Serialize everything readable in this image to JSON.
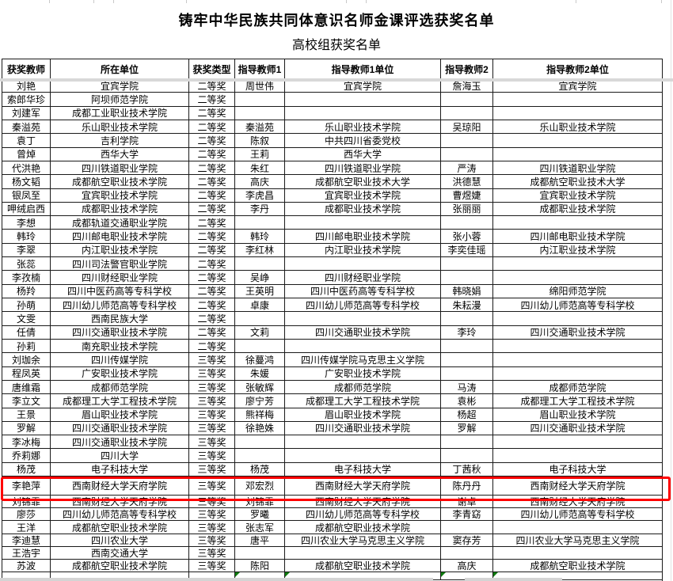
{
  "title": "铸牢中华民族共同体意识名师金课评选获奖名单",
  "subtitle": "高校组获奖名单",
  "columns": [
    "获奖教师",
    "所在单位",
    "获奖类型",
    "指导教师1",
    "指导教师1单位",
    "指导教师2",
    "指导教师2单位"
  ],
  "colors": {
    "highlight_border": "#ff0000",
    "comment_marker_green": "#0e7a0e",
    "grid_border": "#1a1a1a",
    "pane_divider_grey": "#d8d8d8"
  },
  "rows": [
    {
      "cells": [
        "刘艳",
        "宜宾学院",
        "二等奖",
        "周世伟",
        "宜宾学院",
        "詹海玉",
        "宜宾学院"
      ],
      "markers": [],
      "highlighted": false
    },
    {
      "cells": [
        "索郎华珍",
        "阿坝师范学院",
        "二等奖",
        "",
        "",
        "",
        ""
      ],
      "markers": [
        3,
        4,
        5,
        6
      ],
      "highlighted": false
    },
    {
      "cells": [
        "刘建军",
        "成都工业职业技术学院",
        "二等奖",
        "",
        "",
        "",
        ""
      ],
      "markers": [
        3,
        4,
        5,
        6
      ],
      "highlighted": false
    },
    {
      "cells": [
        "秦溢苑",
        "乐山职业技术学院",
        "二等奖",
        "秦溢苑",
        "乐山职业技术学院",
        "吴琼阳",
        "乐山职业技术学院"
      ],
      "markers": [],
      "highlighted": false
    },
    {
      "cells": [
        "袁丁",
        "吉利学院",
        "二等奖",
        "陈叙",
        "中共四川省委党校",
        "",
        ""
      ],
      "markers": [
        5,
        6
      ],
      "highlighted": false
    },
    {
      "cells": [
        "曾焯",
        "西华大学",
        "二等奖",
        "王莉",
        "西华大学",
        "",
        ""
      ],
      "markers": [
        5,
        6
      ],
      "highlighted": false
    },
    {
      "cells": [
        "代洪艳",
        "四川铁道职业学院",
        "二等奖",
        "朱红",
        "四川铁道职业学院",
        "严涛",
        "四川铁道职业学院"
      ],
      "markers": [],
      "highlighted": false
    },
    {
      "cells": [
        "杨文韬",
        "成都航空职业技术学院",
        "二等奖",
        "高庆",
        "成都航空职业技术大学",
        "洪德慧",
        "成都航空职业技术大学"
      ],
      "markers": [],
      "highlighted": false
    },
    {
      "cells": [
        "银凤至",
        "宜宾职业技术学院",
        "二等奖",
        "李虎昌",
        "宜宾职业技术学院",
        "曹煜婕",
        "宜宾职业技术学院"
      ],
      "markers": [],
      "highlighted": false
    },
    {
      "cells": [
        "呷绒启西",
        "成都职业技术学院",
        "二等奖",
        "李丹",
        "成都职业技术学院",
        "张丽丽",
        "成都职业技术学院"
      ],
      "markers": [],
      "highlighted": false
    },
    {
      "cells": [
        "李想",
        "成都轨道交通职业学院",
        "二等奖",
        "",
        "",
        "",
        ""
      ],
      "markers": [],
      "highlighted": false
    },
    {
      "cells": [
        "韩玲",
        "四川邮电职业技术学院",
        "二等奖",
        "韩玲",
        "四川邮电职业技术学院",
        "张小蓉",
        "四川邮电职业技术学院"
      ],
      "markers": [],
      "highlighted": false
    },
    {
      "cells": [
        "李翠",
        "内江职业技术学院",
        "二等奖",
        "李红林",
        "内江职业技术学院",
        "李奕佳瑶",
        "内江职业技术学院"
      ],
      "markers": [],
      "highlighted": false
    },
    {
      "cells": [
        "张蕊",
        "四川司法警官职业学院",
        "二等奖",
        "",
        "",
        "",
        ""
      ],
      "markers": [
        3,
        4,
        5,
        6
      ],
      "highlighted": false
    },
    {
      "cells": [
        "李孜楠",
        "四川财经职业学院",
        "二等奖",
        "吴峥",
        "四川财经职业学院",
        "",
        ""
      ],
      "markers": [
        5,
        6
      ],
      "highlighted": false
    },
    {
      "cells": [
        "杨羚",
        "四川中医药高等专科学校",
        "二等奖",
        "王英明",
        "四川中医药高等专科学校",
        "韩晓娟",
        "绵阳师范学院"
      ],
      "markers": [],
      "highlighted": false
    },
    {
      "cells": [
        "孙萌",
        "四川幼儿师范高等专科学校",
        "二等奖",
        "卓康",
        "四川幼儿师范高等专科学校",
        "朱耘漫",
        "四川幼儿师范高等专科学校"
      ],
      "markers": [],
      "highlighted": false
    },
    {
      "cells": [
        "文雯",
        "西南民族大学",
        "二等奖",
        "",
        "",
        "",
        ""
      ],
      "markers": [
        3,
        4,
        5,
        6
      ],
      "highlighted": false
    },
    {
      "cells": [
        "任倩",
        "四川交通职业技术学院",
        "二等奖",
        "文莉",
        "四川交通职业技术学院",
        "李玲",
        "四川交通职业技术学院"
      ],
      "markers": [],
      "highlighted": false
    },
    {
      "cells": [
        "孙莉",
        "南充职业技术学院",
        "二等奖",
        "",
        "",
        "",
        ""
      ],
      "markers": [
        3,
        4,
        5,
        6
      ],
      "highlighted": false
    },
    {
      "cells": [
        "刘珈余",
        "四川传媒学院",
        "三等奖",
        "徐蔓鸿",
        "四川传媒学院马克思主义学院",
        "",
        ""
      ],
      "markers": [
        5,
        6
      ],
      "highlighted": false
    },
    {
      "cells": [
        "程凤英",
        "广安职业技术学院",
        "三等奖",
        "朱媛",
        "广安职业技术学院",
        "",
        ""
      ],
      "markers": [
        5,
        6
      ],
      "highlighted": false
    },
    {
      "cells": [
        "唐维霜",
        "成都师范学院",
        "三等奖",
        "张敏辉",
        "成都师范学院",
        "马涛",
        "成都师范学院"
      ],
      "markers": [],
      "highlighted": false
    },
    {
      "cells": [
        "李立文",
        "成都理工大学工程技术学院",
        "三等奖",
        "廖宁芳",
        "成都理工大学工程技术学院",
        "袁彬",
        "成都理工大学工程技术学院"
      ],
      "markers": [],
      "highlighted": false
    },
    {
      "cells": [
        "王景",
        "眉山职业技术学院",
        "三等奖",
        "熊祥梅",
        "眉山职业技术学院",
        "杨超",
        "眉山职业技术学院"
      ],
      "markers": [],
      "highlighted": false
    },
    {
      "cells": [
        "罗解",
        "四川交通职业技术学院",
        "三等奖",
        "徐艳姝",
        "四川交通职业技术学院",
        "罗解",
        "四川交通职业技术学院"
      ],
      "markers": [],
      "highlighted": false
    },
    {
      "cells": [
        "李冰梅",
        "四川交通职业技术学院",
        "三等奖",
        "",
        "",
        "",
        ""
      ],
      "markers": [
        3,
        4,
        5,
        6
      ],
      "highlighted": false
    },
    {
      "cells": [
        "乔莉娜",
        "四川大学",
        "三等奖",
        "",
        "",
        "",
        ""
      ],
      "markers": [
        3,
        4,
        5,
        6
      ],
      "highlighted": false
    },
    {
      "cells": [
        "杨茂",
        "电子科技大学",
        "三等奖",
        "杨茂",
        "电子科技大学",
        "丁茜秋",
        "电子科技大学"
      ],
      "markers": [],
      "highlighted": false
    },
    {
      "cells": [
        "李艳萍",
        "西南财经大学天府学院",
        "三等奖",
        "邓宏烈",
        "西南财经大学天府学院",
        "陈丹丹",
        "西南财经大学天府学院"
      ],
      "markers": [],
      "highlighted": true
    },
    {
      "cells": [
        "刘锦霏",
        "西南财经大学天府学院",
        "三等奖",
        "刘锦霏",
        "西南财经大学天府学院",
        "谢卓",
        "西南财经大学天府学院"
      ],
      "markers": [],
      "highlighted": false
    },
    {
      "cells": [
        "廖莎",
        "四川幼儿师范高等专科学校",
        "三等奖",
        "罗曦",
        "四川幼儿师范高等专科学校",
        "李青窈",
        "四川幼儿师范高等专科学校"
      ],
      "markers": [],
      "highlighted": false
    },
    {
      "cells": [
        "王洋",
        "成都航空职业技术学院",
        "三等奖",
        "张志军",
        "成都航空职业技术学院",
        "",
        ""
      ],
      "markers": [
        5,
        6
      ],
      "highlighted": false
    },
    {
      "cells": [
        "李迪慧",
        "四川农业大学",
        "三等奖",
        "唐平",
        "四川农业大学马克思主义学院",
        "窦存芳",
        "四川农业大学马克思主义学院"
      ],
      "markers": [],
      "highlighted": false
    },
    {
      "cells": [
        "王浩宇",
        "西南交通大学",
        "三等奖",
        "",
        "",
        "",
        ""
      ],
      "markers": [
        3,
        4,
        5,
        6
      ],
      "highlighted": false
    },
    {
      "cells": [
        "苏波",
        "成都航空职业技术学院",
        "三等奖",
        "陈阳",
        "成都航空职业技术学院",
        "高庆",
        "成都航空职业技术学院"
      ],
      "markers": [],
      "highlighted": false
    }
  ],
  "partial_next_row": {
    "markers": [
      3,
      4,
      5,
      6
    ]
  }
}
